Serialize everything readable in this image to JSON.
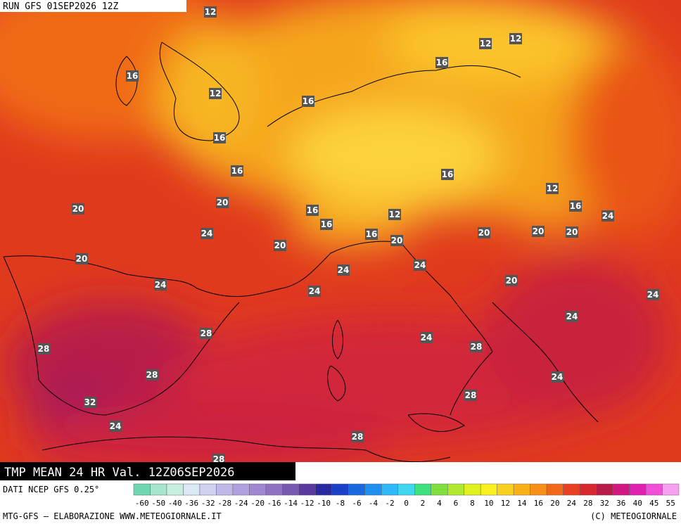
{
  "header": {
    "run": "RUN GFS 01SEP2026 12Z"
  },
  "contour_labels": [
    12,
    12,
    12,
    16,
    16,
    12,
    16,
    16,
    16,
    16,
    12,
    20,
    20,
    16,
    16,
    24,
    16,
    12,
    24,
    16,
    20,
    20,
    20,
    20,
    20,
    20,
    24,
    24,
    24,
    20,
    24,
    24,
    24,
    28,
    24,
    28,
    28,
    28,
    24,
    28,
    32,
    24,
    28,
    28
  ],
  "footer": {
    "title": "TMP MEAN 24 HR Val. 12Z06SEP2026",
    "source": "DATI NCEP GFS 0.25°",
    "credit": "MTG-GFS — ELABORAZIONE WWW.METEOGIORNALE.IT",
    "copyright": "(C) METEOGIORNALE"
  },
  "scale": {
    "labels": [
      -60,
      -50,
      -40,
      -36,
      -32,
      -28,
      -24,
      -20,
      -16,
      -14,
      -12,
      -10,
      -8,
      -6,
      -4,
      -2,
      0,
      2,
      4,
      6,
      8,
      10,
      12,
      14,
      16,
      20,
      24,
      28,
      32,
      36,
      40,
      45,
      55
    ],
    "colors": [
      "#6fd6b0",
      "#a6e6cc",
      "#c8eee0",
      "#d8e8f4",
      "#d0d0f0",
      "#c0b8e8",
      "#b0a0e0",
      "#a088d0",
      "#9070c0",
      "#7858b0",
      "#5a3aa0",
      "#2a2aa0",
      "#1a40c8",
      "#1a68e0",
      "#2090f0",
      "#30b8f8",
      "#40d8f0",
      "#40e080",
      "#80e040",
      "#b0e830",
      "#e0f020",
      "#f8f020",
      "#f8d020",
      "#f8b018",
      "#f89018",
      "#f06818",
      "#e84020",
      "#d82830",
      "#b81c48",
      "#d01880",
      "#e020b0",
      "#f050d8",
      "#f8a0f0"
    ]
  }
}
